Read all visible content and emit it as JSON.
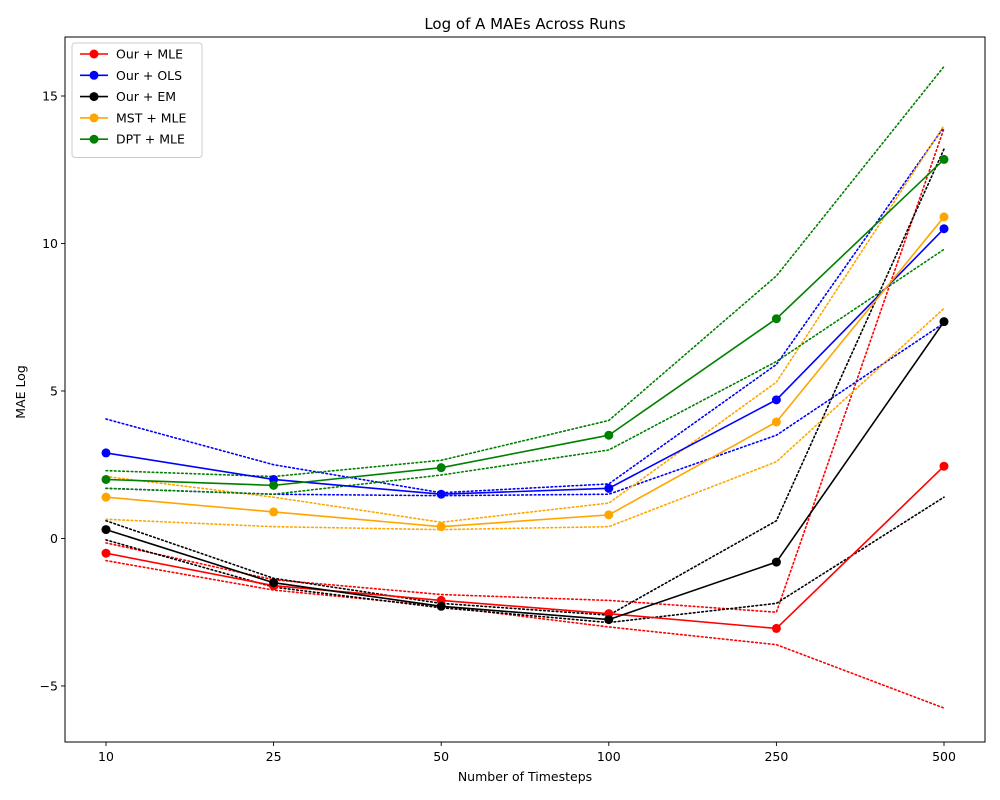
{
  "chart_data": {
    "type": "line",
    "title": "Log of A MAEs Across Runs",
    "xlabel": "Number of Timesteps",
    "ylabel": "MAE Log",
    "categories": [
      "10",
      "25",
      "50",
      "100",
      "250",
      "500"
    ],
    "ylim": [
      -6.9,
      17.0
    ],
    "yticks": [
      -5,
      0,
      5,
      10,
      15
    ],
    "ytick_labels": [
      "−5",
      "0",
      "5",
      "10",
      "15"
    ],
    "grid": false,
    "legend_position": "upper-left",
    "series": [
      {
        "name": "Our + MLE",
        "color": "#ff0000",
        "values": [
          -0.5,
          -1.6,
          -2.1,
          -2.55,
          -3.05,
          2.45
        ],
        "upper": [
          -0.15,
          -1.4,
          -1.9,
          -2.1,
          -2.5,
          13.9
        ],
        "lower": [
          -0.75,
          -1.75,
          -2.3,
          -3.0,
          -3.6,
          -5.75
        ]
      },
      {
        "name": "Our + OLS",
        "color": "#0000ff",
        "values": [
          2.9,
          2.0,
          1.5,
          1.7,
          4.7,
          10.5
        ],
        "upper": [
          4.05,
          2.5,
          1.55,
          1.85,
          5.9,
          13.95
        ],
        "lower": [
          1.7,
          1.5,
          1.45,
          1.5,
          3.5,
          7.3
        ]
      },
      {
        "name": "Our + EM",
        "color": "#000000",
        "values": [
          0.3,
          -1.5,
          -2.3,
          -2.75,
          -0.8,
          7.35
        ],
        "upper": [
          0.6,
          -1.35,
          -2.2,
          -2.6,
          0.6,
          13.2
        ],
        "lower": [
          -0.05,
          -1.65,
          -2.35,
          -2.85,
          -2.2,
          1.4
        ]
      },
      {
        "name": "MST + MLE",
        "color": "#ffa500",
        "values": [
          1.4,
          0.9,
          0.4,
          0.8,
          3.95,
          10.9
        ],
        "upper": [
          2.1,
          1.4,
          0.55,
          1.2,
          5.3,
          14.0
        ],
        "lower": [
          0.65,
          0.4,
          0.3,
          0.4,
          2.6,
          7.8
        ]
      },
      {
        "name": "DPT + MLE",
        "color": "#008000",
        "values": [
          2.0,
          1.8,
          2.4,
          3.5,
          7.45,
          12.85
        ],
        "upper": [
          2.3,
          2.1,
          2.65,
          4.0,
          8.9,
          16.0
        ],
        "lower": [
          1.7,
          1.5,
          2.15,
          3.0,
          6.0,
          9.8
        ]
      }
    ]
  }
}
